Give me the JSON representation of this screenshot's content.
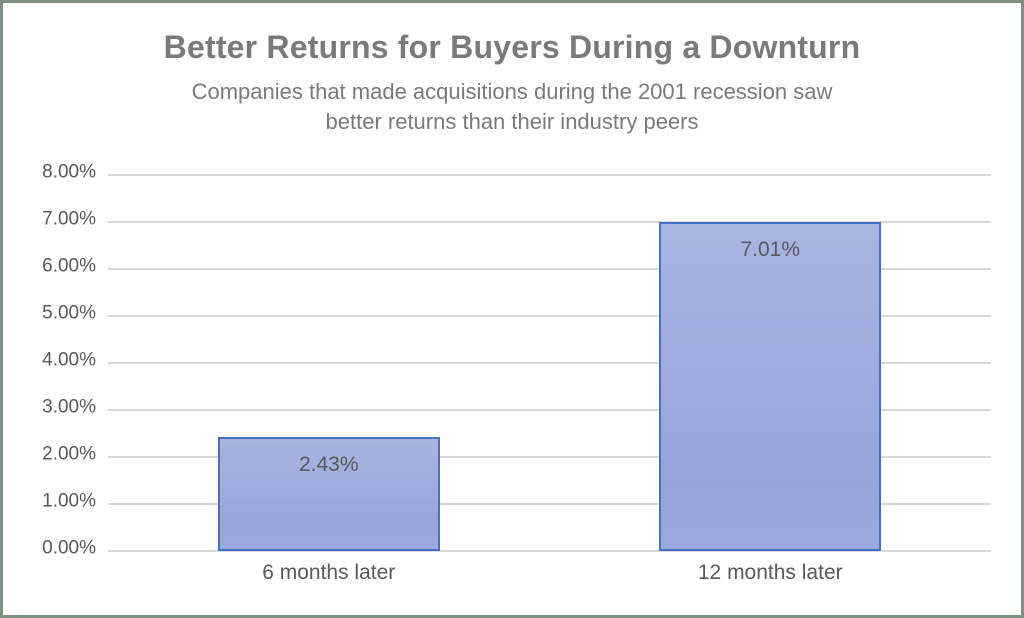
{
  "chart_data": {
    "type": "bar",
    "title": "Better Returns for Buyers During a Downturn",
    "subtitle_lines": [
      "Companies that made acquisitions during the 2001 recession saw",
      "better returns than their industry peers"
    ],
    "categories": [
      "6 months later",
      "12 months later"
    ],
    "values": [
      2.43,
      7.01
    ],
    "value_labels": [
      "2.43%",
      "7.01%"
    ],
    "ylim": [
      0,
      8
    ],
    "ytick_step": 1,
    "ytick_labels": [
      "0.00%",
      "1.00%",
      "2.00%",
      "3.00%",
      "4.00%",
      "5.00%",
      "6.00%",
      "7.00%",
      "8.00%"
    ],
    "xlabel": "",
    "ylabel": "",
    "grid": true,
    "legend": "none"
  },
  "colors": {
    "frame_border": "#7d917f",
    "title_text": "#7a7a7a",
    "subtitle_text": "#7a7a7a",
    "axis_text": "#595959",
    "gridline": "#d9d9d9",
    "bar_border": "#4472c4",
    "bar_fill_top": "#a9b4e2",
    "bar_fill_bottom": "#95a5da",
    "data_label": "#595959"
  }
}
